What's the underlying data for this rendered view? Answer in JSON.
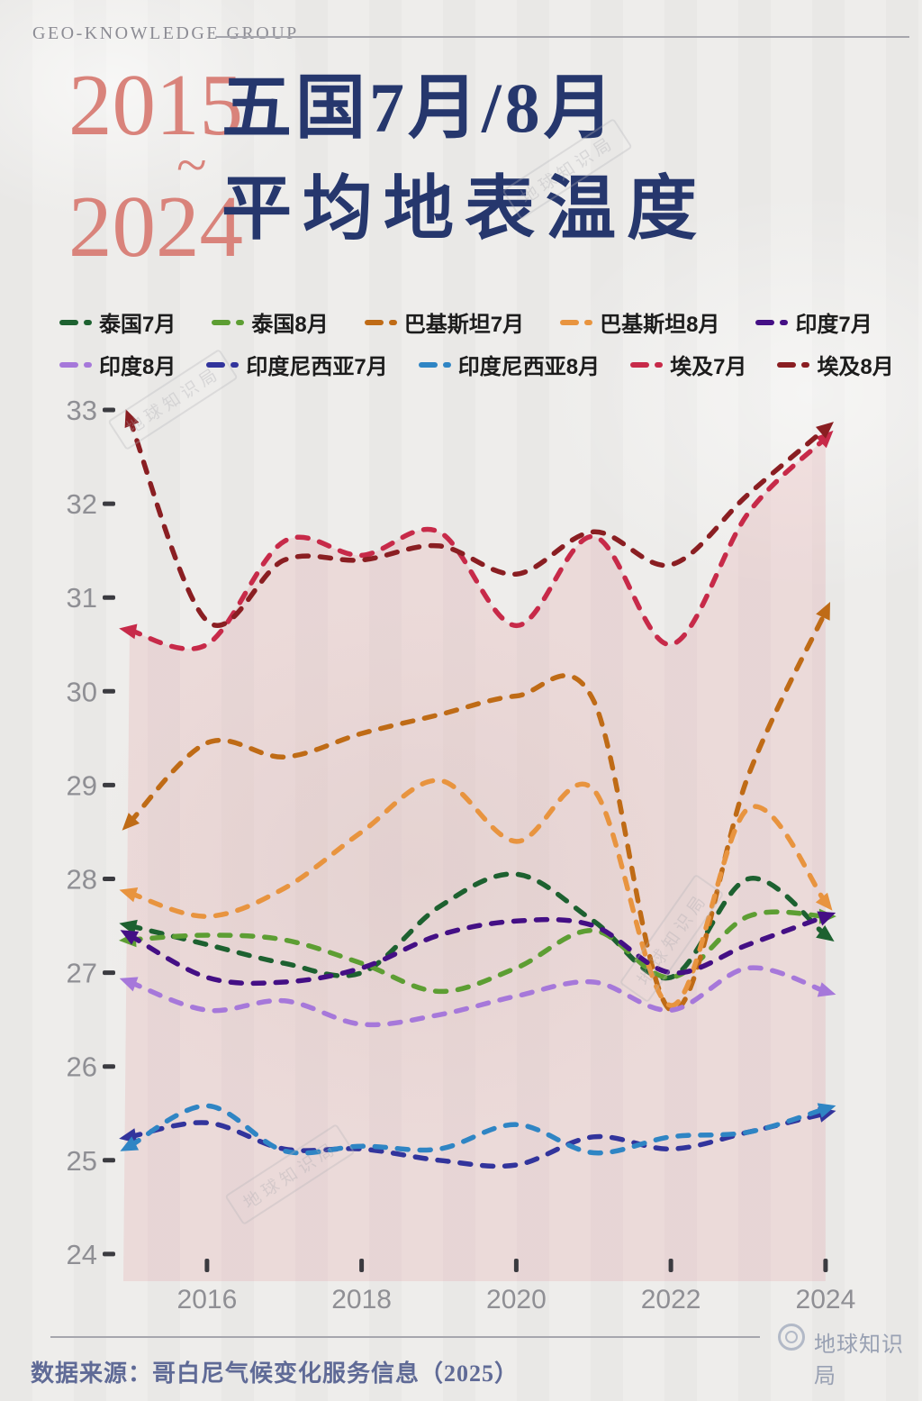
{
  "header": {
    "brand": "GEO-KNOWLEDGE GROUP"
  },
  "title": {
    "period_start": "2015",
    "tilde": "~",
    "period_end": "2024",
    "line1": "五国7月/8月",
    "line2": "平均地表温度",
    "period_color": "#d9837b",
    "title_color": "#26376d"
  },
  "watermark": {
    "text": "地球知识局"
  },
  "footer": {
    "brand": "地球知识局",
    "source": "数据来源：哥白尼气候变化服务信息（2025）"
  },
  "chart_data": {
    "type": "line",
    "title": "五国7月/8月平均地表温度",
    "subtitle_period": "2015~2024",
    "xlabel": "",
    "ylabel": "",
    "x": [
      2015,
      2016,
      2017,
      2018,
      2019,
      2020,
      2021,
      2022,
      2023,
      2024
    ],
    "x_tick_labels": [
      "2016",
      "2018",
      "2020",
      "2022",
      "2024"
    ],
    "x_ticks": [
      2016,
      2018,
      2020,
      2022,
      2024
    ],
    "ylim": [
      24,
      33
    ],
    "y_ticks": [
      24,
      25,
      26,
      27,
      28,
      29,
      30,
      31,
      32,
      33
    ],
    "grid": false,
    "legend_position": "top",
    "line_style": "dashed-with-arrowheads-both-ends",
    "area_fill": {
      "under_series": "埃及7月",
      "color": "rgba(224,120,126,0.16)"
    },
    "axis_tick_color": "#3b3b40",
    "axis_label_color": "#8f8f94",
    "series": [
      {
        "name": "泰国7月",
        "color": "#1d6130",
        "legend_row": 1,
        "values": [
          27.5,
          27.3,
          27.1,
          27.0,
          27.7,
          28.05,
          27.55,
          26.95,
          28.0,
          27.4
        ]
      },
      {
        "name": "泰国8月",
        "color": "#5d9e33",
        "legend_row": 1,
        "values": [
          27.35,
          27.4,
          27.35,
          27.1,
          26.8,
          27.05,
          27.45,
          26.95,
          27.6,
          27.6
        ]
      },
      {
        "name": "巴基斯坦7月",
        "color": "#bf6b16",
        "legend_row": 1,
        "values": [
          28.6,
          29.45,
          29.3,
          29.55,
          29.75,
          29.95,
          29.9,
          26.6,
          29.1,
          30.85
        ]
      },
      {
        "name": "巴基斯坦8月",
        "color": "#e8943f",
        "legend_row": 1,
        "values": [
          27.85,
          27.6,
          27.9,
          28.5,
          29.05,
          28.4,
          28.95,
          26.65,
          28.75,
          27.75
        ]
      },
      {
        "name": "印度7月",
        "color": "#440f85",
        "legend_row": 1,
        "values": [
          27.4,
          26.95,
          26.9,
          27.05,
          27.4,
          27.55,
          27.5,
          27.0,
          27.3,
          27.6
        ]
      },
      {
        "name": "印度8月",
        "color": "#a678da",
        "legend_row": 2,
        "values": [
          26.9,
          26.6,
          26.7,
          26.45,
          26.55,
          26.75,
          26.9,
          26.6,
          27.05,
          26.8
        ]
      },
      {
        "name": "印度尼西亚7月",
        "color": "#32349c",
        "legend_row": 2,
        "values": [
          25.25,
          25.4,
          25.12,
          25.12,
          25.0,
          24.95,
          25.25,
          25.12,
          25.3,
          25.5
        ]
      },
      {
        "name": "印度尼西亚8月",
        "color": "#2f85c4",
        "legend_row": 2,
        "values": [
          25.15,
          25.58,
          25.1,
          25.15,
          25.12,
          25.38,
          25.08,
          25.25,
          25.3,
          25.55
        ]
      },
      {
        "name": "埃及7月",
        "color": "#c72a49",
        "legend_row": 2,
        "values": [
          30.65,
          30.5,
          31.6,
          31.45,
          31.7,
          30.7,
          31.65,
          30.5,
          31.9,
          32.7
        ]
      },
      {
        "name": "埃及8月",
        "color": "#8a1e22",
        "legend_row": 2,
        "values": [
          32.9,
          30.75,
          31.4,
          31.4,
          31.55,
          31.25,
          31.7,
          31.35,
          32.1,
          32.8
        ]
      }
    ]
  }
}
